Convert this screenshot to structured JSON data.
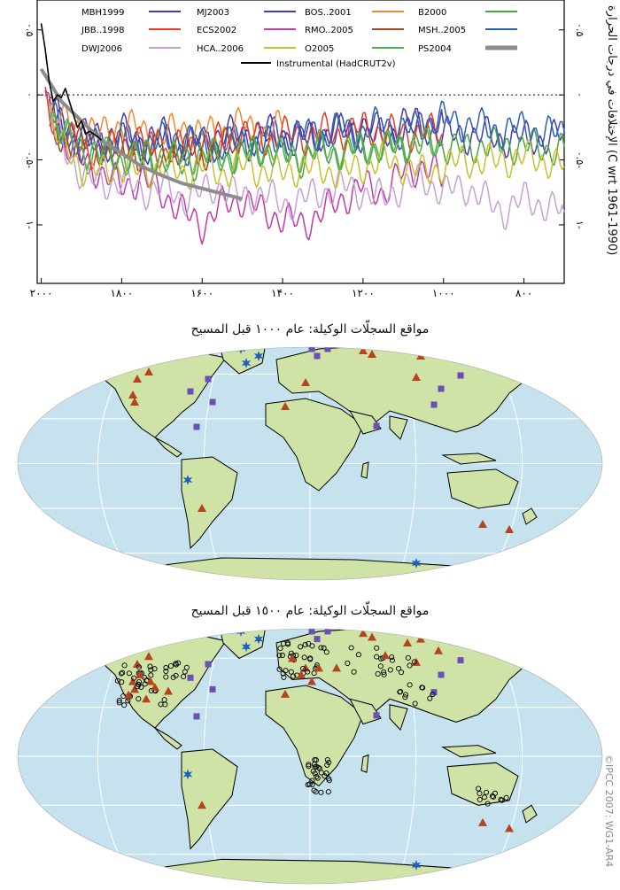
{
  "chart_data": {
    "type": "line",
    "title": "",
    "ylabel": "الإختلافات في درجات الحرارة (C wrt 1961-1990)",
    "xlabel": "",
    "x_ticks": [
      "۲۰۰۰",
      "۱۸۰۰",
      "۱۶۰۰",
      "۱۴۰۰",
      "۱۲۰۰",
      "۱۰۰۰",
      "۸۰۰"
    ],
    "x_tick_values": [
      2000,
      1800,
      1600,
      1400,
      1200,
      1000,
      800
    ],
    "y_ticks_left": [
      "۰.۵",
      "۰",
      "۰.۵-",
      "۱-"
    ],
    "y_ticks_right": [
      "۰.۵",
      "۰",
      "۰.۵-",
      "۱-"
    ],
    "y_tick_values": [
      0.5,
      0.0,
      -0.5,
      -1.0
    ],
    "xlim": [
      2010,
      700
    ],
    "ylim": [
      -1.45,
      0.73
    ],
    "x_reversed": true,
    "reference_line": 0.0,
    "legend_placement": "top-center",
    "series": [
      {
        "name": "MBH1999",
        "color": "#4b3aa8",
        "x": [
          1990,
          1950,
          1900,
          1850,
          1800,
          1750,
          1700,
          1650,
          1600,
          1550,
          1500,
          1450,
          1400,
          1350,
          1300,
          1250,
          1200,
          1150,
          1100,
          1050,
          1000
        ],
        "values": [
          -0.05,
          -0.2,
          -0.3,
          -0.32,
          -0.28,
          -0.35,
          -0.3,
          -0.38,
          -0.35,
          -0.3,
          -0.3,
          -0.28,
          -0.3,
          -0.32,
          -0.3,
          -0.28,
          -0.25,
          -0.28,
          -0.22,
          -0.2,
          -0.22
        ]
      },
      {
        "name": "MJ2003",
        "color": "#4040b8",
        "x": [
          1980,
          1950,
          1900,
          1850,
          1800,
          1750,
          1700,
          1650,
          1600,
          1550,
          1500,
          1450,
          1400,
          1350,
          1300,
          1250,
          1200,
          1150,
          1100,
          1050,
          1000,
          950,
          900,
          850,
          800,
          750,
          700
        ],
        "values": [
          -0.1,
          -0.25,
          -0.4,
          -0.4,
          -0.35,
          -0.4,
          -0.35,
          -0.42,
          -0.4,
          -0.38,
          -0.35,
          -0.3,
          -0.32,
          -0.35,
          -0.3,
          -0.28,
          -0.3,
          -0.32,
          -0.28,
          -0.25,
          -0.3,
          -0.32,
          -0.3,
          -0.35,
          -0.32,
          -0.35,
          -0.3
        ]
      },
      {
        "name": "BOS..2001",
        "color": "#f08a30",
        "x": [
          1980,
          1950,
          1900,
          1850,
          1800,
          1750,
          1700,
          1650,
          1600,
          1550,
          1500,
          1450,
          1400
        ],
        "values": [
          -0.1,
          -0.2,
          -0.25,
          -0.3,
          -0.22,
          -0.28,
          -0.32,
          -0.25,
          -0.3,
          -0.28,
          -0.22,
          -0.3,
          -0.25
        ]
      },
      {
        "name": "B2000",
        "color": "#4aa83a",
        "x": [
          1980,
          1950,
          1900,
          1850,
          1800,
          1750,
          1700,
          1650,
          1600,
          1550,
          1500,
          1450,
          1400,
          1350,
          1300,
          1250,
          1200,
          1150,
          1100,
          1050,
          1000,
          950,
          900,
          850,
          800,
          750,
          700
        ],
        "values": [
          -0.1,
          -0.3,
          -0.45,
          -0.5,
          -0.45,
          -0.5,
          -0.45,
          -0.55,
          -0.5,
          -0.45,
          -0.5,
          -0.4,
          -0.45,
          -0.5,
          -0.42,
          -0.45,
          -0.4,
          -0.42,
          -0.38,
          -0.35,
          -0.4,
          -0.42,
          -0.38,
          -0.4,
          -0.38,
          -0.42,
          -0.4
        ]
      },
      {
        "name": "JBB..1998",
        "color": "#f03a20",
        "x": [
          1990,
          1950,
          1900,
          1850,
          1800,
          1750,
          1700,
          1650,
          1600,
          1550,
          1500,
          1450,
          1400,
          1350,
          1300,
          1250,
          1200,
          1150,
          1100,
          1050,
          1000
        ],
        "values": [
          -0.05,
          -0.3,
          -0.4,
          -0.45,
          -0.38,
          -0.35,
          -0.45,
          -0.4,
          -0.38,
          -0.35,
          -0.3,
          -0.35,
          -0.3,
          -0.32,
          -0.28,
          -0.3,
          -0.25,
          -0.28,
          -0.3,
          -0.28,
          -0.3
        ]
      },
      {
        "name": "ECS2002",
        "color": "#c03aa8",
        "x": [
          1990,
          1950,
          1900,
          1850,
          1800,
          1750,
          1700,
          1650,
          1600,
          1550,
          1500,
          1450,
          1400,
          1350,
          1300,
          1250,
          1200,
          1150,
          1100,
          1050,
          1000
        ],
        "values": [
          -0.05,
          -0.35,
          -0.5,
          -0.6,
          -0.7,
          -0.65,
          -0.75,
          -0.9,
          -1.0,
          -0.85,
          -0.8,
          -0.9,
          -0.95,
          -1.0,
          -0.9,
          -0.8,
          -0.7,
          -0.75,
          -0.6,
          -0.55,
          -0.65
        ]
      },
      {
        "name": "RMO..2005",
        "color": "#a04520",
        "x": [
          1980,
          1950,
          1900,
          1850,
          1800,
          1750,
          1700,
          1650,
          1600,
          1550,
          1500
        ],
        "values": [
          -0.1,
          -0.35,
          -0.38,
          -0.4,
          -0.42,
          -0.45,
          -0.4,
          -0.42,
          -0.45,
          -0.4,
          -0.38
        ]
      },
      {
        "name": "MSH..2005",
        "color": "#2a60b8",
        "x": [
          1980,
          1950,
          1900,
          1850,
          1800,
          1750,
          1700,
          1650,
          1600,
          1550,
          1500,
          1450,
          1400,
          1350,
          1300,
          1250,
          1200,
          1150,
          1100,
          1050,
          1000,
          950,
          900,
          850,
          800,
          750,
          700
        ],
        "values": [
          -0.1,
          -0.3,
          -0.35,
          -0.38,
          -0.35,
          -0.4,
          -0.35,
          -0.32,
          -0.38,
          -0.4,
          -0.35,
          -0.4,
          -0.35,
          -0.3,
          -0.32,
          -0.25,
          -0.3,
          -0.2,
          -0.28,
          -0.22,
          -0.18,
          -0.22,
          -0.25,
          -0.28,
          -0.25,
          -0.3,
          -0.28
        ]
      },
      {
        "name": "DWJ2006",
        "color": "#c8a0d8",
        "x": [
          1980,
          1950,
          1900,
          1850,
          1800,
          1750,
          1700,
          1650,
          1600,
          1550,
          1500,
          1450,
          1400,
          1350,
          1300,
          1250,
          1200,
          1150,
          1100,
          1050,
          1000,
          950,
          900,
          850,
          800,
          750,
          700
        ],
        "values": [
          -0.1,
          -0.4,
          -0.6,
          -0.7,
          -0.65,
          -0.75,
          -0.7,
          -0.8,
          -0.75,
          -0.7,
          -0.8,
          -0.75,
          -0.85,
          -0.8,
          -0.75,
          -0.7,
          -0.75,
          -0.8,
          -0.7,
          -0.65,
          -0.75,
          -0.7,
          -0.8,
          -0.9,
          -0.8,
          -0.85,
          -0.9
        ]
      },
      {
        "name": "HCA..2006",
        "color": "#c8c030",
        "x": [
          1980,
          1950,
          1900,
          1850,
          1800,
          1750,
          1700,
          1650,
          1600,
          1550,
          1500,
          1450,
          1400,
          1350,
          1300,
          1250,
          1200,
          1150,
          1100,
          1050,
          1000,
          950,
          900,
          850,
          800,
          750,
          700
        ],
        "values": [
          -0.1,
          -0.4,
          -0.55,
          -0.6,
          -0.55,
          -0.6,
          -0.55,
          -0.6,
          -0.55,
          -0.6,
          -0.55,
          -0.58,
          -0.6,
          -0.55,
          -0.58,
          -0.6,
          -0.55,
          -0.5,
          -0.55,
          -0.6,
          -0.55,
          -0.5,
          -0.52,
          -0.5,
          -0.48,
          -0.5,
          -0.55
        ]
      },
      {
        "name": "O2005",
        "color": "#50b050",
        "x": [
          1980,
          1950,
          1900,
          1850,
          1800,
          1750,
          1700,
          1650,
          1600,
          1550,
          1500,
          1450,
          1400,
          1350,
          1300,
          1250,
          1200,
          1150,
          1100,
          1050,
          1000
        ],
        "values": [
          -0.1,
          -0.3,
          -0.4,
          -0.45,
          -0.5,
          -0.45,
          -0.5,
          -0.48,
          -0.45,
          -0.5,
          -0.45,
          -0.42,
          -0.48,
          -0.45,
          -0.4,
          -0.45,
          -0.4,
          -0.42,
          -0.38,
          -0.4,
          -0.38
        ]
      },
      {
        "name": "PS2004",
        "color": "#8c8c8c",
        "x": [
          2000,
          1950,
          1900,
          1850,
          1800,
          1750,
          1700,
          1650,
          1600,
          1550,
          1500
        ],
        "values": [
          0.2,
          -0.05,
          -0.2,
          -0.35,
          -0.45,
          -0.55,
          -0.62,
          -0.68,
          -0.72,
          -0.76,
          -0.8
        ]
      },
      {
        "name": "Instrumental (HadCRUT2v)",
        "color": "#000000",
        "x": [
          2000,
          1990,
          1980,
          1970,
          1960,
          1950,
          1940,
          1930,
          1920,
          1910,
          1900,
          1890,
          1880,
          1870,
          1860,
          1850
        ],
        "values": [
          0.55,
          0.35,
          0.1,
          -0.05,
          0.0,
          -0.02,
          0.05,
          -0.05,
          -0.15,
          -0.25,
          -0.2,
          -0.3,
          -0.28,
          -0.3,
          -0.32,
          -0.35
        ]
      }
    ]
  },
  "map_titles": {
    "map1": "مواقع السجلّات الوكيلة: عام ١٠٠٠ قبل المسيح",
    "map2": "مواقع السجلّات الوكيلة: عام ١٥٠٠ قبل المسيح"
  },
  "copyright": "©IPCC 2007: WG1-AR4",
  "colors": {
    "ocean": "#c6e2ef",
    "land": "#cfe3a6",
    "coast": "#000000",
    "triangle": "#b5441e",
    "square": "#6a4fb5",
    "star": "#1f5fbf"
  },
  "icon_names": [
    "triangle-marker",
    "square-marker",
    "star-marker",
    "circle-marker"
  ]
}
